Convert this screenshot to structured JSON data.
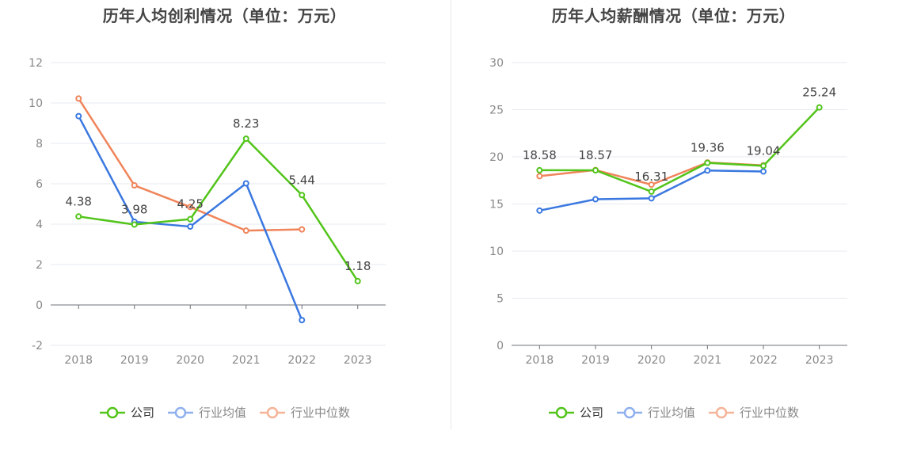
{
  "chart_data": [
    {
      "type": "line",
      "title": "历年人均创利情况（单位：万元）",
      "categories": [
        "2018",
        "2019",
        "2020",
        "2021",
        "2022",
        "2023"
      ],
      "ylim": [
        -2,
        12
      ],
      "yticks": [
        -2,
        0,
        2,
        4,
        6,
        8,
        10,
        12
      ],
      "grid": true,
      "legend_position": "bottom",
      "series": [
        {
          "name": "公司",
          "color": "#52c41a",
          "values": [
            4.38,
            3.98,
            4.25,
            8.23,
            5.44,
            1.18
          ],
          "labels": [
            "4.38",
            "3.98",
            "4.25",
            "8.23",
            "5.44",
            "1.18"
          ]
        },
        {
          "name": "行业均值",
          "color": "#3a78e0",
          "values": [
            9.35,
            4.12,
            3.88,
            6.02,
            -0.75,
            null
          ]
        },
        {
          "name": "行业中位数",
          "color": "#f0845a",
          "values": [
            10.22,
            5.92,
            4.85,
            3.68,
            3.74,
            null
          ]
        }
      ]
    },
    {
      "type": "line",
      "title": "历年人均薪酬情况（单位：万元）",
      "categories": [
        "2018",
        "2019",
        "2020",
        "2021",
        "2022",
        "2023"
      ],
      "ylim": [
        0,
        30
      ],
      "yticks": [
        0,
        5,
        10,
        15,
        20,
        25,
        30
      ],
      "grid": true,
      "legend_position": "bottom",
      "series": [
        {
          "name": "公司",
          "color": "#52c41a",
          "values": [
            18.58,
            18.57,
            16.31,
            19.36,
            19.04,
            25.24
          ],
          "labels": [
            "18.58",
            "18.57",
            "16.31",
            "19.36",
            "19.04",
            "25.24"
          ]
        },
        {
          "name": "行业均值",
          "color": "#3a78e0",
          "values": [
            14.3,
            15.5,
            15.6,
            18.55,
            18.45,
            null
          ]
        },
        {
          "name": "行业中位数",
          "color": "#f0845a",
          "values": [
            17.95,
            18.6,
            17.05,
            19.4,
            19.1,
            null
          ]
        }
      ]
    }
  ],
  "legend": {
    "company": "公司",
    "industry_avg": "行业均值",
    "industry_median": "行业中位数"
  },
  "colors": {
    "company": "#52c41a",
    "industry_avg": "#3a78e0",
    "industry_median": "#f0845a",
    "legend_text_active": "#333333",
    "legend_text_muted": "#888888"
  }
}
